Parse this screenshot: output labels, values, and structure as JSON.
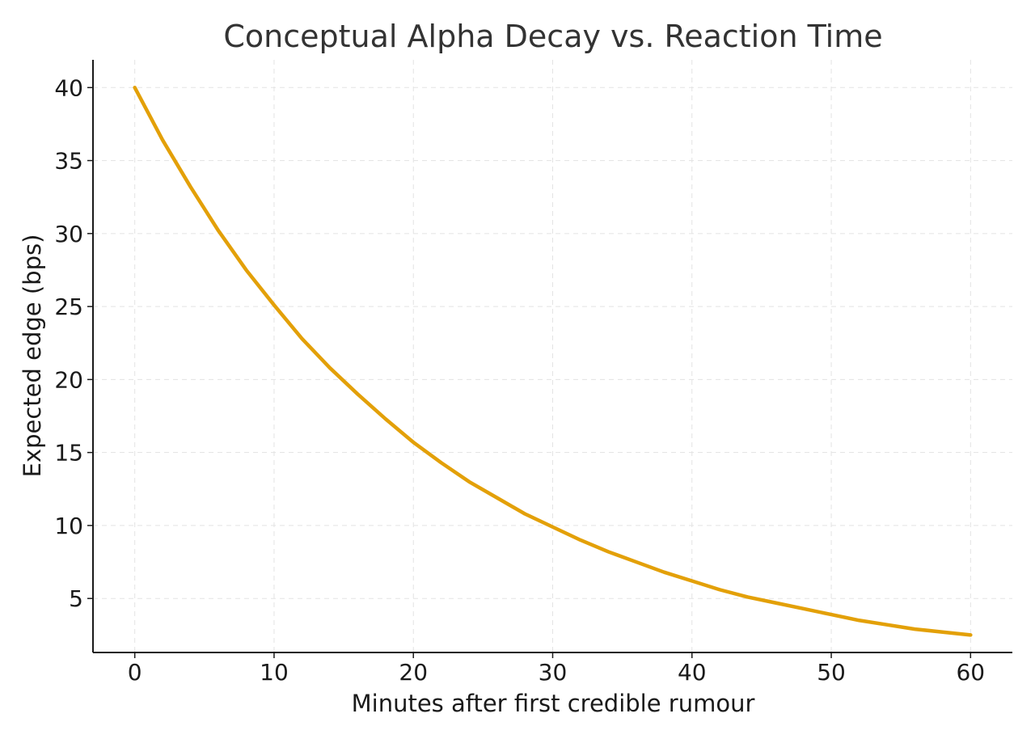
{
  "chart_data": {
    "type": "line",
    "title": "Conceptual Alpha Decay vs. Reaction Time",
    "xlabel": "Minutes after first credible rumour",
    "ylabel": "Expected edge (bps)",
    "xlim": [
      -3,
      63
    ],
    "ylim": [
      1.3,
      41.9
    ],
    "xticks": [
      0,
      10,
      20,
      30,
      40,
      50,
      60
    ],
    "yticks": [
      5,
      10,
      15,
      20,
      25,
      30,
      35,
      40
    ],
    "grid": true,
    "series": [
      {
        "color": "#e3a008",
        "x": [
          0,
          2,
          4,
          6,
          8,
          10,
          12,
          14,
          16,
          18,
          20,
          22,
          24,
          26,
          28,
          30,
          32,
          34,
          36,
          38,
          40,
          42,
          44,
          46,
          48,
          50,
          52,
          54,
          56,
          58,
          60
        ],
        "y": [
          40.0,
          36.4,
          33.2,
          30.2,
          27.5,
          25.1,
          22.8,
          20.8,
          19.0,
          17.3,
          15.7,
          14.3,
          13.0,
          11.9,
          10.8,
          9.9,
          9.0,
          8.2,
          7.5,
          6.8,
          6.2,
          5.6,
          5.1,
          4.7,
          4.3,
          3.9,
          3.5,
          3.2,
          2.9,
          2.7,
          2.5
        ]
      }
    ]
  }
}
